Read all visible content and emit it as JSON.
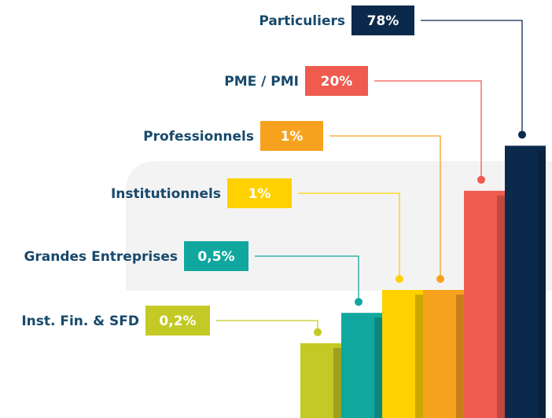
{
  "chart_data": {
    "type": "bar",
    "categories": [
      "Inst. Fin. & SFD",
      "Grandes Entreprises",
      "Institutionnels",
      "Professionnels",
      "PME / PMI",
      "Particuliers"
    ],
    "values": [
      0.2,
      0.5,
      1,
      1,
      20,
      78
    ],
    "value_labels": [
      "0,2%",
      "0,5%",
      "1%",
      "1%",
      "20%",
      "78%"
    ],
    "colors": [
      "#c3c925",
      "#10a89e",
      "#ffd100",
      "#f7a21e",
      "#ef5b4f",
      "#0b2a4b"
    ]
  }
}
